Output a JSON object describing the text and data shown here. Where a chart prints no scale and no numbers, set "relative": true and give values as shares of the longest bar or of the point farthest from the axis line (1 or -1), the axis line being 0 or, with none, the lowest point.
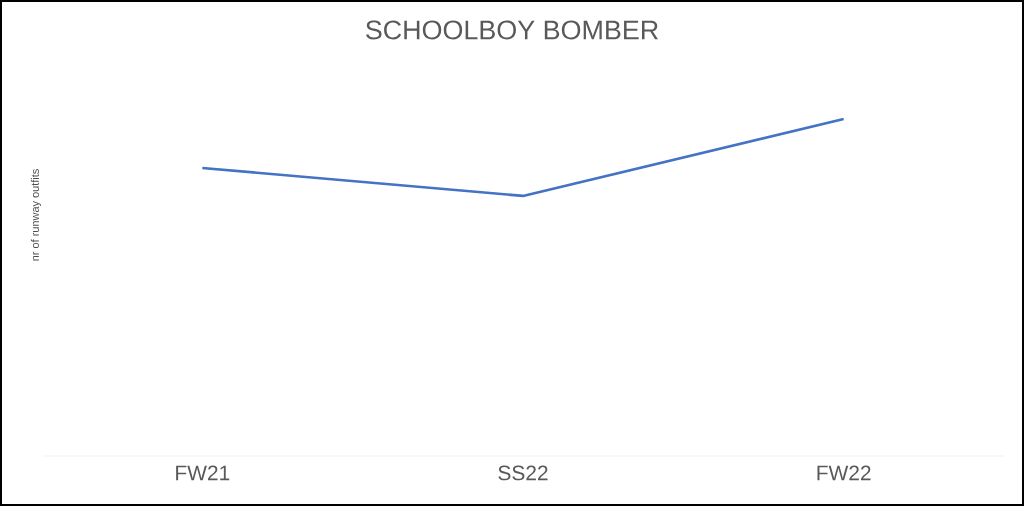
{
  "chart_data": {
    "type": "line",
    "title": "SCHOOLBOY BOMBER",
    "ylabel": "nr of runway outfits",
    "categories": [
      "FW21",
      "SS22",
      "FW22"
    ],
    "relative": true,
    "series": [
      {
        "color": "#4472c4",
        "values": [
          0.855,
          0.772,
          1
        ]
      }
    ]
  }
}
